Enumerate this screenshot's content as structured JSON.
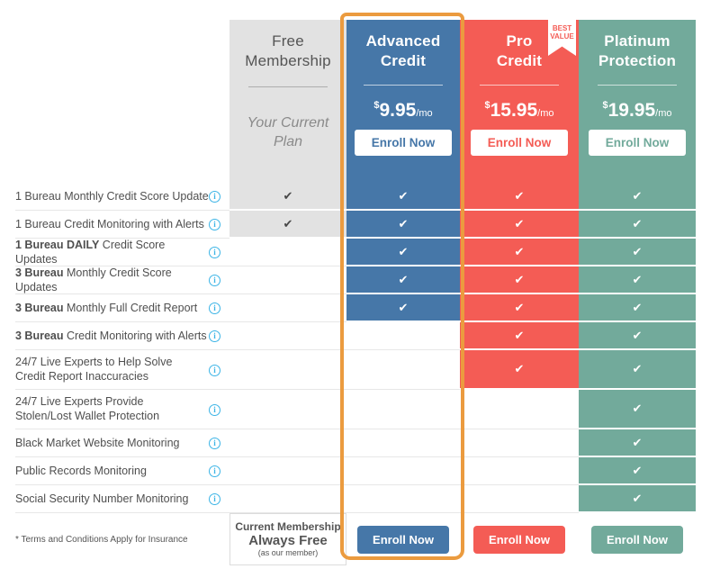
{
  "colors": {
    "blue": "#4677a8",
    "red": "#f45c55",
    "green": "#72aa9b",
    "gray": "#e2e2e2",
    "orange": "#eb9b3f",
    "info_blue": "#3cb4e6",
    "text": "#4f4f4f"
  },
  "icons": {
    "check": "✔",
    "info": "i"
  },
  "plans": [
    {
      "id": "free",
      "name": "Free\nMembership",
      "subtitle": "Your Current\nPlan",
      "footer_box": {
        "line1": "Current Membership",
        "line2": "Always Free",
        "line3": "(as our member)"
      }
    },
    {
      "id": "advanced",
      "name": "Advanced\nCredit",
      "currency": "$",
      "price": "9.95",
      "per": "/mo",
      "enroll_label": "Enroll Now",
      "footer_enroll_label": "Enroll Now",
      "highlighted": true
    },
    {
      "id": "pro",
      "name": "Pro\nCredit",
      "currency": "$",
      "price": "15.95",
      "per": "/mo",
      "enroll_label": "Enroll Now",
      "footer_enroll_label": "Enroll Now",
      "badge": "BEST\nVALUE"
    },
    {
      "id": "platinum",
      "name": "Platinum\nProtection",
      "currency": "$",
      "price": "19.95",
      "per": "/mo",
      "enroll_label": "Enroll Now",
      "footer_enroll_label": "Enroll Now"
    }
  ],
  "features": [
    {
      "bold": "",
      "text": "1 Bureau Monthly Credit Score Update",
      "available": [
        true,
        true,
        true,
        true
      ]
    },
    {
      "bold": "",
      "text": "1 Bureau Credit Monitoring with Alerts",
      "available": [
        true,
        true,
        true,
        true
      ]
    },
    {
      "bold": "1 Bureau DAILY",
      "text": " Credit Score Updates",
      "available": [
        false,
        true,
        true,
        true
      ]
    },
    {
      "bold": "3 Bureau",
      "text": " Monthly Credit Score Updates",
      "available": [
        false,
        true,
        true,
        true
      ]
    },
    {
      "bold": "3 Bureau",
      "text": " Monthly Full Credit Report",
      "available": [
        false,
        true,
        true,
        true
      ]
    },
    {
      "bold": "3 Bureau",
      "text": " Credit Monitoring with Alerts",
      "available": [
        false,
        false,
        true,
        true
      ]
    },
    {
      "bold": "",
      "lines": [
        "24/7 Live Experts to Help Solve",
        "Credit Report Inaccuracies"
      ],
      "available": [
        false,
        false,
        true,
        true
      ]
    },
    {
      "bold": "",
      "lines": [
        "24/7 Live Experts Provide",
        "Stolen/Lost Wallet Protection"
      ],
      "available": [
        false,
        false,
        false,
        true
      ]
    },
    {
      "bold": "",
      "text": "Black Market Website Monitoring",
      "available": [
        false,
        false,
        false,
        true
      ]
    },
    {
      "bold": "",
      "text": "Public Records Monitoring",
      "available": [
        false,
        false,
        false,
        true
      ]
    },
    {
      "bold": "",
      "text": "Social Security Number Monitoring",
      "available": [
        false,
        false,
        false,
        true
      ]
    }
  ],
  "footer": {
    "note": "* Terms and Conditions Apply for Insurance"
  }
}
